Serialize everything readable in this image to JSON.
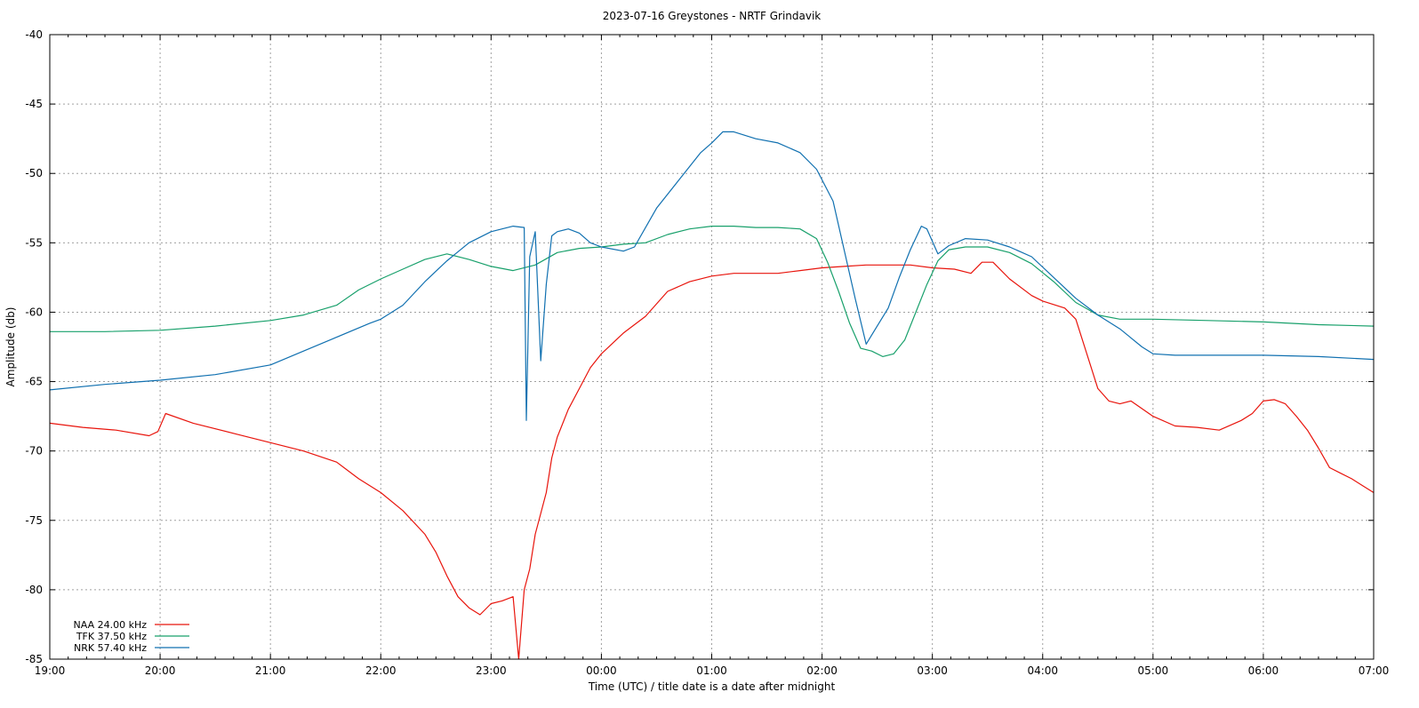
{
  "chart_data": {
    "type": "line",
    "title": "2023-07-16 Greystones - NRTF Grindavik",
    "xlabel": "Time (UTC) / title date is a date after midnight",
    "ylabel": "Amplitude (db)",
    "ylim": [
      -85,
      -40
    ],
    "xlim": [
      19,
      31
    ],
    "x_ticks": [
      {
        "x": 19,
        "label": "19:00"
      },
      {
        "x": 20,
        "label": "20:00"
      },
      {
        "x": 21,
        "label": "21:00"
      },
      {
        "x": 22,
        "label": "22:00"
      },
      {
        "x": 23,
        "label": "23:00"
      },
      {
        "x": 24,
        "label": "00:00"
      },
      {
        "x": 25,
        "label": "01:00"
      },
      {
        "x": 26,
        "label": "02:00"
      },
      {
        "x": 27,
        "label": "03:00"
      },
      {
        "x": 28,
        "label": "04:00"
      },
      {
        "x": 29,
        "label": "05:00"
      },
      {
        "x": 30,
        "label": "06:00"
      },
      {
        "x": 31,
        "label": "07:00"
      }
    ],
    "y_ticks": [
      {
        "y": -40,
        "label": "-40"
      },
      {
        "y": -45,
        "label": "-45"
      },
      {
        "y": -50,
        "label": "-50"
      },
      {
        "y": -55,
        "label": "-55"
      },
      {
        "y": -60,
        "label": "-60"
      },
      {
        "y": -65,
        "label": "-65"
      },
      {
        "y": -70,
        "label": "-70"
      },
      {
        "y": -75,
        "label": "-75"
      },
      {
        "y": -80,
        "label": "-80"
      },
      {
        "y": -85,
        "label": "-85"
      }
    ],
    "grid": true,
    "legend_position": "bottom-left",
    "series": [
      {
        "name": "NAA 24.00 kHz",
        "color": "#e8140c",
        "x": [
          19.0,
          19.3,
          19.6,
          19.9,
          19.98,
          20.05,
          20.3,
          20.7,
          21.0,
          21.3,
          21.6,
          21.8,
          22.0,
          22.2,
          22.4,
          22.5,
          22.6,
          22.7,
          22.8,
          22.9,
          23.0,
          23.1,
          23.2,
          23.25,
          23.3,
          23.35,
          23.4,
          23.45,
          23.5,
          23.55,
          23.6,
          23.7,
          23.8,
          23.9,
          24.0,
          24.2,
          24.4,
          24.6,
          24.8,
          25.0,
          25.2,
          25.4,
          25.6,
          25.8,
          26.0,
          26.2,
          26.4,
          26.6,
          26.8,
          27.0,
          27.2,
          27.35,
          27.45,
          27.55,
          27.7,
          27.9,
          28.0,
          28.2,
          28.3,
          28.4,
          28.5,
          28.6,
          28.7,
          28.8,
          29.0,
          29.2,
          29.4,
          29.6,
          29.8,
          29.9,
          30.0,
          30.1,
          30.2,
          30.3,
          30.4,
          30.5,
          30.6,
          30.7,
          30.8,
          30.9,
          31.0
        ],
        "y": [
          -68.0,
          -68.3,
          -68.5,
          -68.9,
          -68.6,
          -67.3,
          -68.0,
          -68.8,
          -69.4,
          -70.0,
          -70.8,
          -72.0,
          -73.0,
          -74.3,
          -76.0,
          -77.3,
          -79.0,
          -80.5,
          -81.3,
          -81.8,
          -81.0,
          -80.8,
          -80.5,
          -85.0,
          -80.0,
          -78.5,
          -76.0,
          -74.5,
          -73.0,
          -70.5,
          -69.0,
          -67.0,
          -65.5,
          -64.0,
          -63.0,
          -61.5,
          -60.3,
          -58.5,
          -57.8,
          -57.4,
          -57.2,
          -57.2,
          -57.2,
          -57.0,
          -56.8,
          -56.7,
          -56.6,
          -56.6,
          -56.6,
          -56.8,
          -56.9,
          -57.2,
          -56.4,
          -56.4,
          -57.6,
          -58.8,
          -59.2,
          -59.7,
          -60.5,
          -63.0,
          -65.5,
          -66.4,
          -66.6,
          -66.4,
          -67.5,
          -68.2,
          -68.3,
          -68.5,
          -67.8,
          -67.3,
          -66.4,
          -66.3,
          -66.6,
          -67.5,
          -68.5,
          -69.8,
          -71.2,
          -71.6,
          -72.0,
          -72.5,
          -73.0
        ]
      },
      {
        "name": "TFK 37.50 kHz",
        "color": "#18a06b",
        "x": [
          19.0,
          19.5,
          20.0,
          20.5,
          21.0,
          21.3,
          21.6,
          21.8,
          22.0,
          22.2,
          22.4,
          22.6,
          22.8,
          23.0,
          23.2,
          23.4,
          23.6,
          23.8,
          24.0,
          24.2,
          24.4,
          24.6,
          24.8,
          25.0,
          25.2,
          25.4,
          25.6,
          25.8,
          25.95,
          26.05,
          26.15,
          26.25,
          26.35,
          26.45,
          26.55,
          26.65,
          26.75,
          26.85,
          26.95,
          27.05,
          27.15,
          27.3,
          27.5,
          27.7,
          27.9,
          28.1,
          28.3,
          28.5,
          28.7,
          29.0,
          29.5,
          30.0,
          30.5,
          31.0
        ],
        "y": [
          -61.4,
          -61.4,
          -61.3,
          -61.0,
          -60.6,
          -60.2,
          -59.5,
          -58.4,
          -57.6,
          -56.9,
          -56.2,
          -55.8,
          -56.2,
          -56.7,
          -57.0,
          -56.6,
          -55.7,
          -55.4,
          -55.3,
          -55.1,
          -55.0,
          -54.4,
          -54.0,
          -53.8,
          -53.8,
          -53.9,
          -53.9,
          -54.0,
          -54.7,
          -56.4,
          -58.5,
          -60.8,
          -62.6,
          -62.8,
          -63.2,
          -63.0,
          -62.0,
          -60.0,
          -58.0,
          -56.3,
          -55.5,
          -55.3,
          -55.3,
          -55.7,
          -56.5,
          -57.8,
          -59.3,
          -60.2,
          -60.5,
          -60.5,
          -60.6,
          -60.7,
          -60.9,
          -61.0
        ]
      },
      {
        "name": "NRK 57.40 kHz",
        "color": "#1070b0",
        "x": [
          19.0,
          19.5,
          20.0,
          20.5,
          21.0,
          21.3,
          21.6,
          21.9,
          22.0,
          22.2,
          22.4,
          22.6,
          22.8,
          23.0,
          23.1,
          23.2,
          23.3,
          23.32,
          23.35,
          23.4,
          23.45,
          23.5,
          23.55,
          23.6,
          23.7,
          23.8,
          23.9,
          24.0,
          24.2,
          24.3,
          24.5,
          24.7,
          24.9,
          25.0,
          25.1,
          25.2,
          25.4,
          25.6,
          25.8,
          25.95,
          26.1,
          26.2,
          26.3,
          26.4,
          26.5,
          26.6,
          26.7,
          26.8,
          26.9,
          26.95,
          27.05,
          27.15,
          27.3,
          27.5,
          27.7,
          27.9,
          28.1,
          28.3,
          28.5,
          28.7,
          28.9,
          29.0,
          29.2,
          29.5,
          30.0,
          30.5,
          31.0
        ],
        "y": [
          -65.6,
          -65.2,
          -64.9,
          -64.5,
          -63.8,
          -62.8,
          -61.8,
          -60.8,
          -60.5,
          -59.5,
          -57.8,
          -56.3,
          -55.0,
          -54.2,
          -54.0,
          -53.8,
          -53.9,
          -67.8,
          -56.0,
          -54.2,
          -63.5,
          -58.0,
          -54.5,
          -54.2,
          -54.0,
          -54.3,
          -55.0,
          -55.3,
          -55.6,
          -55.3,
          -52.5,
          -50.5,
          -48.5,
          -47.8,
          -47.0,
          -47.0,
          -47.5,
          -47.8,
          -48.5,
          -49.7,
          -52.0,
          -55.5,
          -59.0,
          -62.3,
          -61.0,
          -59.7,
          -57.5,
          -55.5,
          -53.8,
          -54.0,
          -55.8,
          -55.2,
          -54.7,
          -54.8,
          -55.3,
          -56.0,
          -57.5,
          -59.0,
          -60.2,
          -61.2,
          -62.5,
          -63.0,
          -63.1,
          -63.1,
          -63.1,
          -63.2,
          -63.4
        ]
      }
    ]
  }
}
